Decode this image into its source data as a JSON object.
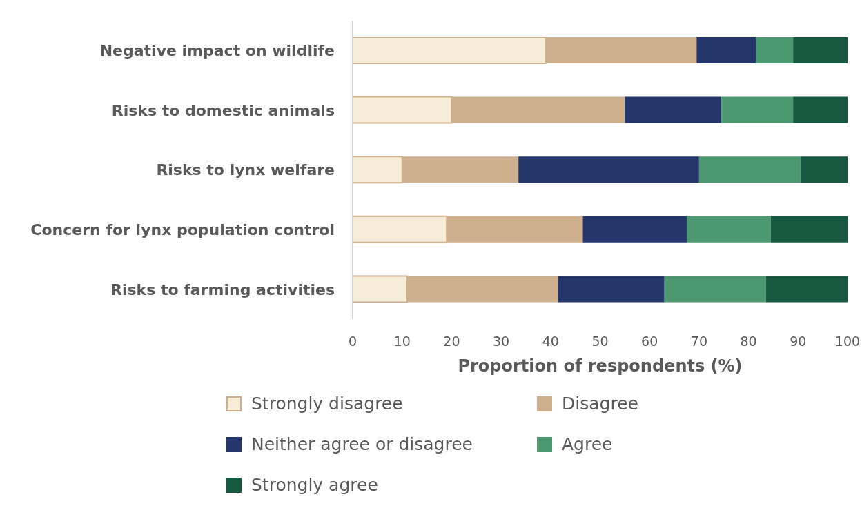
{
  "chart_data": {
    "type": "bar",
    "orientation": "horizontal",
    "stacked": true,
    "xlabel": "Proportion of respondents (%)",
    "categories": [
      "Negative impact on wildlife ",
      "Risks to domestic animals",
      "Risks to lynx welfare",
      "Concern for lynx population control",
      "Risks to farming activities"
    ],
    "series": [
      {
        "name": "Strongly disagree",
        "color": "#f5edd8",
        "values": [
          39,
          20,
          10,
          19,
          11
        ]
      },
      {
        "name": "Disagree",
        "color": "#cfb08e",
        "values": [
          30.5,
          35,
          23.5,
          27.5,
          30.5
        ]
      },
      {
        "name": "Neither agree or disagree",
        "color": "#24366b",
        "values": [
          12,
          19.5,
          36.5,
          21,
          21.5
        ]
      },
      {
        "name": "Agree",
        "color": "#4c9870",
        "values": [
          7.5,
          14.5,
          20.5,
          17,
          20.5
        ]
      },
      {
        "name": "Strongly agree",
        "color": "#175940",
        "values": [
          11,
          11,
          9.5,
          15.5,
          16.5
        ]
      }
    ],
    "xlim": [
      0,
      100
    ],
    "xticks": [
      0,
      10,
      20,
      30,
      40,
      50,
      60,
      70,
      80,
      90,
      100
    ],
    "legend": "bottom"
  }
}
